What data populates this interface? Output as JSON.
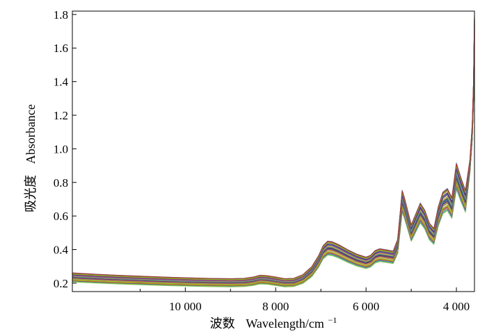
{
  "chart_data": {
    "type": "line",
    "title": "",
    "xlabel_cn": "波数",
    "xlabel_en": "Wavelength/cm",
    "xlabel_sup": "−1",
    "ylabel_cn": "吸光度",
    "ylabel_en": "Absorbance",
    "x_reversed": true,
    "xlim": [
      12500,
      3600
    ],
    "ylim": [
      0.15,
      1.82
    ],
    "x_ticks": [
      {
        "value": 10000,
        "label": "10 000"
      },
      {
        "value": 8000,
        "label": "8 000"
      },
      {
        "value": 6000,
        "label": "6 000"
      },
      {
        "value": 4000,
        "label": "4 000"
      }
    ],
    "x_minor_ticks": [
      11000,
      9000,
      7000,
      5000
    ],
    "y_ticks": [
      {
        "value": 0.2,
        "label": "0.2"
      },
      {
        "value": 0.4,
        "label": "0.4"
      },
      {
        "value": 0.6,
        "label": "0.6"
      },
      {
        "value": 0.8,
        "label": "0.8"
      },
      {
        "value": 1.0,
        "label": "1.0"
      },
      {
        "value": 1.2,
        "label": "1.2"
      },
      {
        "value": 1.4,
        "label": "1.4"
      },
      {
        "value": 1.6,
        "label": "1.6"
      },
      {
        "value": 1.8,
        "label": "1.8"
      }
    ],
    "grid": false,
    "legend": "none",
    "spectrum_count": 45,
    "mean_spectrum": {
      "x": [
        12500,
        12000,
        11500,
        11000,
        10500,
        10000,
        9500,
        9000,
        8700,
        8500,
        8350,
        8200,
        8000,
        7800,
        7600,
        7400,
        7200,
        7050,
        6950,
        6850,
        6750,
        6600,
        6400,
        6200,
        6000,
        5900,
        5800,
        5700,
        5550,
        5400,
        5300,
        5250,
        5200,
        5150,
        5100,
        5000,
        4900,
        4800,
        4700,
        4600,
        4500,
        4400,
        4300,
        4200,
        4100,
        4000,
        3900,
        3800,
        3700,
        3650,
        3620,
        3600
      ],
      "y": [
        0.235,
        0.228,
        0.222,
        0.217,
        0.212,
        0.208,
        0.205,
        0.203,
        0.205,
        0.212,
        0.222,
        0.22,
        0.212,
        0.203,
        0.205,
        0.225,
        0.27,
        0.33,
        0.385,
        0.41,
        0.407,
        0.39,
        0.362,
        0.338,
        0.322,
        0.332,
        0.358,
        0.368,
        0.362,
        0.355,
        0.42,
        0.55,
        0.69,
        0.65,
        0.6,
        0.5,
        0.56,
        0.62,
        0.58,
        0.51,
        0.48,
        0.6,
        0.68,
        0.7,
        0.65,
        0.84,
        0.76,
        0.69,
        0.9,
        1.1,
        1.35,
        1.72
      ]
    },
    "line_colors": [
      "#1f9e3a",
      "#7cc242",
      "#e8c400",
      "#2b8fd6",
      "#7b3fa0",
      "#c43c8a",
      "#2a2a8c",
      "#18a3a3",
      "#d0333b",
      "#6b8e23",
      "#e07b00",
      "#3c3c3c",
      "#9acd32",
      "#4682b4",
      "#b22222"
    ]
  }
}
